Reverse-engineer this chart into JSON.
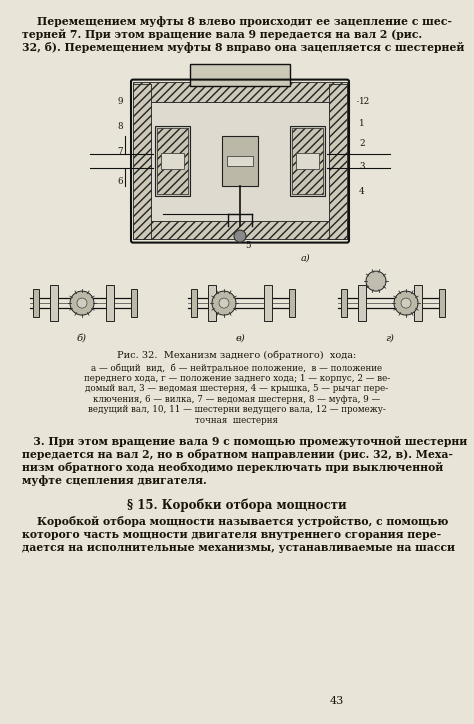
{
  "page_color": "#e8e5d8",
  "text_color": "#1a1508",
  "figsize": [
    4.74,
    7.24
  ],
  "dpi": 100,
  "page_number": "43",
  "top_paragraph": [
    "    Перемещением муфты 8 влево происходит ее зацепление с шес-",
    "терней 7. При этом вращение вала 9 передается на вал 2 (рис.",
    "32, б). Перемещением муфты 8 вправо она зацепляется с шестерней"
  ],
  "caption_main": "Рис. 32.  Механизм заднего (обратного)  хода:",
  "caption_lines": [
    "а — общий  вид,  б — нейтральное положение,  в — положение",
    "переднего хода, г — положение заднего хода; 1 — корпус, 2 — ве-",
    "домый вал, 3 — ведомая шестерня, 4 — крышка, 5 — рычаг пере-",
    "ключения, 6 — вилка, 7 — ведомая шестерня, 8 — муфта, 9 —",
    "ведущий вал, 10, 11 — шестерни ведущего вала, 12 — промежу-",
    "точная  шестерня"
  ],
  "para3_lines": [
    "   3. При этом вращение вала 9 с помощью промежуточной шестерни",
    "передается на вал 2, но в обратном направлении (рис. 32, в). Меха-",
    "низм обратного хода необходимо переключать при выключенной",
    "муфте сцепления двигателя."
  ],
  "section_title": "§ 15. Коробки отбора мощности",
  "section_para": [
    "    Коробкой отбора мощности называется устройство, с помощью",
    "которого часть мощности двигателя внутреннего сгорания пере-",
    "дается на исполнительные механизмы, устанавливаемые на шасси"
  ]
}
